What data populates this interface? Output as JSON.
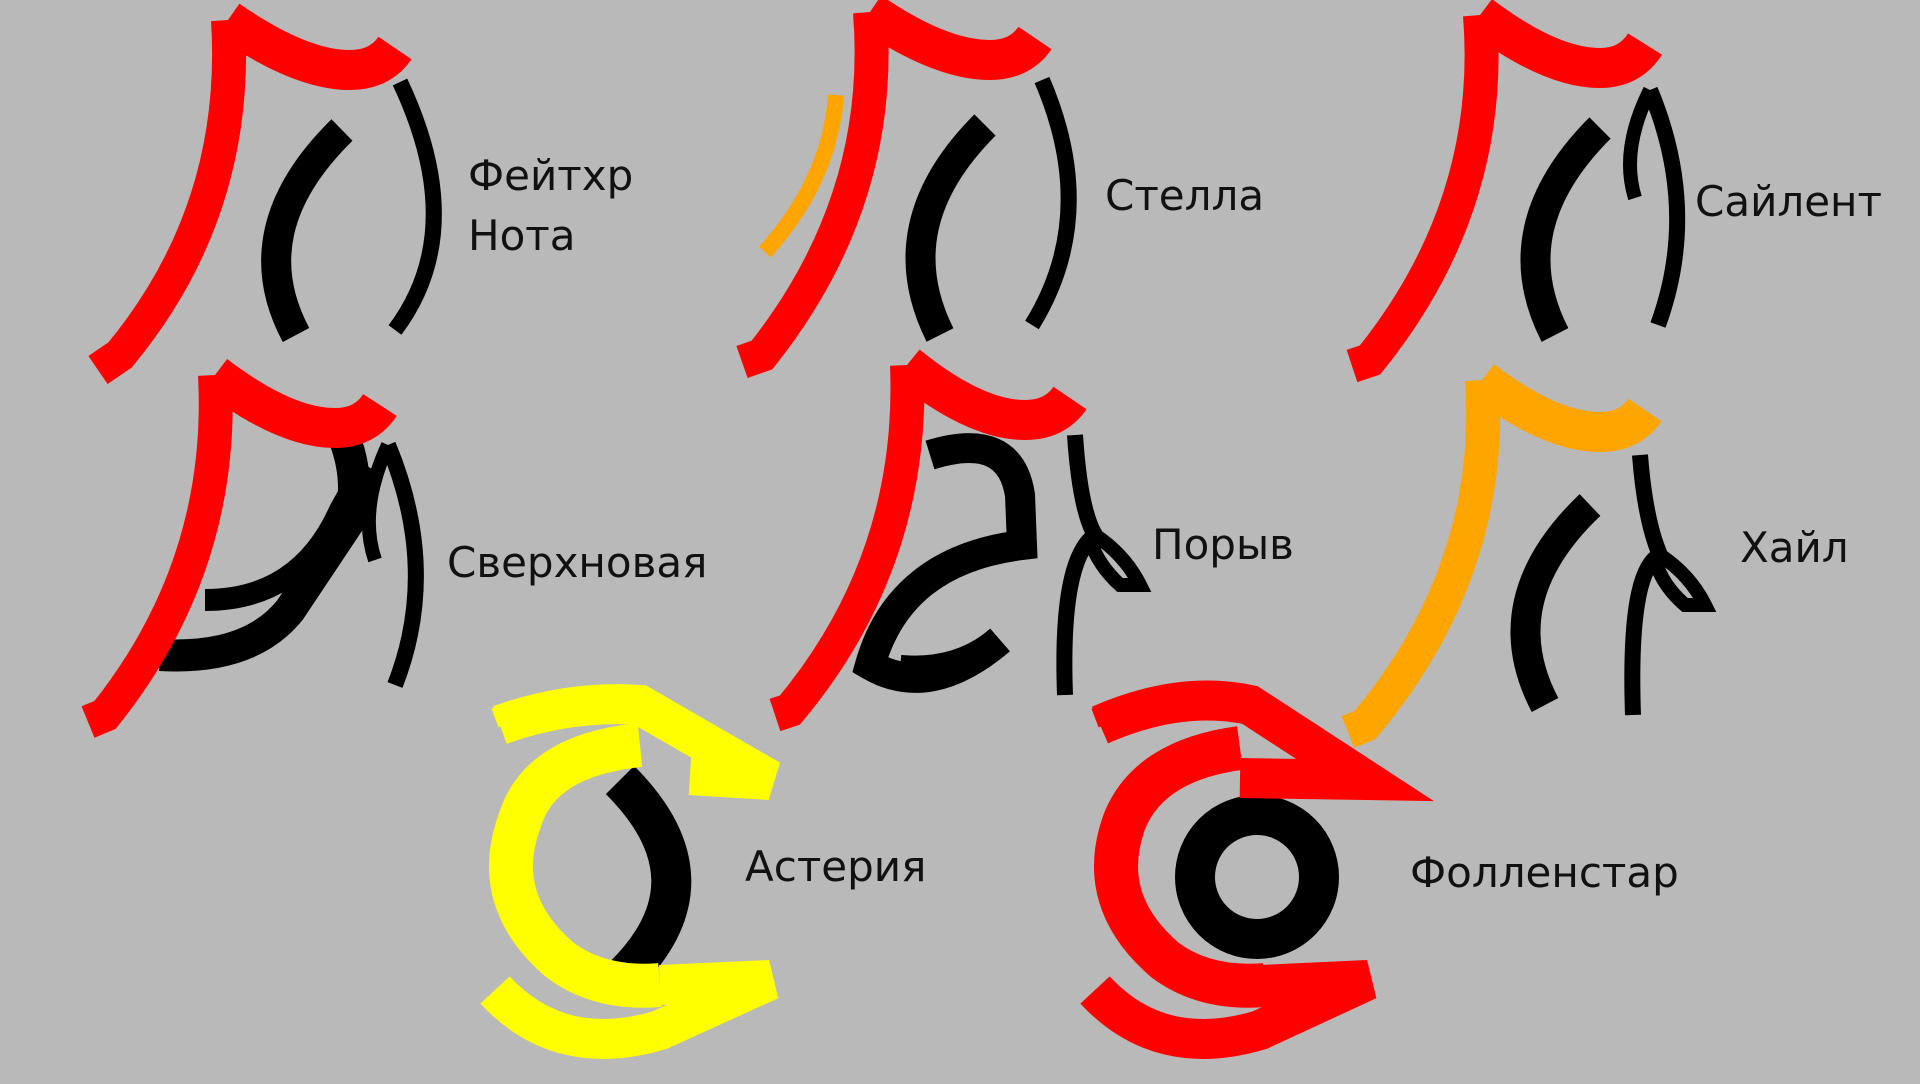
{
  "colors": {
    "background": "#b9b9b9",
    "red": "#ff0000",
    "orange": "#ffa500",
    "yellow": "#ffff00",
    "black": "#000000",
    "text": "#111111"
  },
  "symbols": [
    {
      "id": "feitkhr-nota",
      "label_lines": [
        "Фейтхр",
        "Нота"
      ]
    },
    {
      "id": "stella",
      "label_lines": [
        "Стелла"
      ]
    },
    {
      "id": "sailent",
      "label_lines": [
        "Сайлент"
      ]
    },
    {
      "id": "sverkhnovaya",
      "label_lines": [
        "Сверхновая"
      ]
    },
    {
      "id": "poryv",
      "label_lines": [
        "Порыв"
      ]
    },
    {
      "id": "khail",
      "label_lines": [
        "Хайл"
      ]
    },
    {
      "id": "asteriya",
      "label_lines": [
        "Астерия"
      ]
    },
    {
      "id": "follenstar",
      "label_lines": [
        "Фолленстар"
      ]
    }
  ]
}
